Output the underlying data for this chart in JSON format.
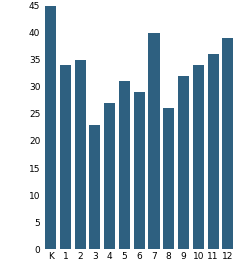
{
  "categories": [
    "K",
    "1",
    "2",
    "3",
    "4",
    "5",
    "6",
    "7",
    "8",
    "9",
    "10",
    "11",
    "12"
  ],
  "values": [
    45,
    34,
    35,
    23,
    27,
    31,
    29,
    40,
    26,
    32,
    34,
    36,
    39
  ],
  "bar_color": "#2e6080",
  "ylim": [
    0,
    45
  ],
  "yticks": [
    0,
    5,
    10,
    15,
    20,
    25,
    30,
    35,
    40,
    45
  ],
  "background_color": "#ffffff",
  "tick_fontsize": 6.5,
  "bar_width": 0.75
}
